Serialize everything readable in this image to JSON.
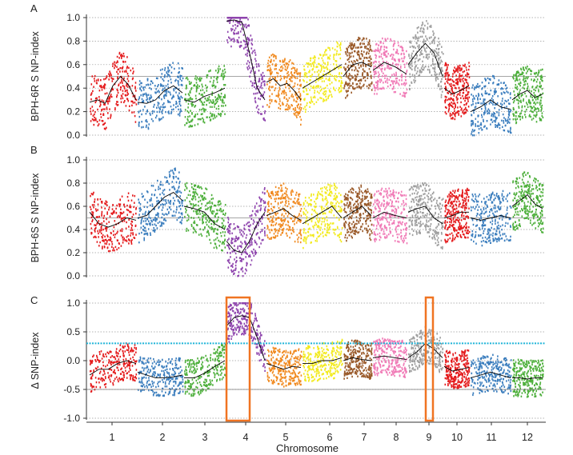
{
  "figure": {
    "xlabel": "Chromosome"
  },
  "colors": {
    "chr1": "#e41a1c",
    "chr2": "#3a7dbd",
    "chr3": "#4caf3a",
    "chr4": "#8e44ad",
    "chr5": "#f0891e",
    "chr6": "#f2ea1c",
    "chr7": "#9a5a2a",
    "chr8": "#f07ab6",
    "chr9": "#9e9e9e",
    "chr10": "#e41a1c",
    "chr11": "#3a7dbd",
    "chr12": "#4caf3a",
    "trend": "#000000",
    "threshold": "#1fb4d8",
    "highlight": "#f07422"
  },
  "chart_data": [
    {
      "id": "A",
      "panel_label": "A",
      "type": "scatter",
      "ylabel": "BPH-6R S NP-index",
      "xlabel": "",
      "ylim": [
        0.0,
        1.0
      ],
      "yticks": [
        "0.0",
        "0.2",
        "0.4",
        "0.6",
        "0.8",
        "1.0"
      ],
      "categories": [
        "1",
        "2",
        "3",
        "4",
        "5",
        "6",
        "7",
        "8",
        "9",
        "10",
        "11",
        "12"
      ],
      "series": [
        {
          "chromosome": "1",
          "mean_index": [
            0.28,
            0.3,
            0.27,
            0.42,
            0.5,
            0.43,
            0.3
          ]
        },
        {
          "chromosome": "2",
          "mean_index": [
            0.28,
            0.27,
            0.3,
            0.38,
            0.42,
            0.36
          ]
        },
        {
          "chromosome": "3",
          "mean_index": [
            0.3,
            0.28,
            0.33,
            0.36,
            0.4
          ]
        },
        {
          "chromosome": "4",
          "mean_index": [
            0.97,
            0.98,
            0.96,
            0.7,
            0.4,
            0.3
          ]
        },
        {
          "chromosome": "5",
          "mean_index": [
            0.45,
            0.48,
            0.42,
            0.44,
            0.38,
            0.3
          ]
        },
        {
          "chromosome": "6",
          "mean_index": [
            0.4,
            0.45,
            0.5,
            0.55,
            0.6
          ]
        },
        {
          "chromosome": "7",
          "mean_index": [
            0.5,
            0.6,
            0.62,
            0.58
          ]
        },
        {
          "chromosome": "8",
          "mean_index": [
            0.55,
            0.62,
            0.58,
            0.52
          ]
        },
        {
          "chromosome": "9",
          "mean_index": [
            0.6,
            0.7,
            0.78,
            0.7,
            0.5
          ]
        },
        {
          "chromosome": "10",
          "mean_index": [
            0.4,
            0.35,
            0.38,
            0.42
          ]
        },
        {
          "chromosome": "11",
          "mean_index": [
            0.2,
            0.24,
            0.3,
            0.24,
            0.22
          ]
        },
        {
          "chromosome": "12",
          "mean_index": [
            0.3,
            0.35,
            0.38,
            0.32,
            0.35
          ]
        }
      ],
      "reference_line": 0.5
    },
    {
      "id": "B",
      "panel_label": "B",
      "type": "scatter",
      "ylabel": "BPH-6S S NP-index",
      "xlabel": "",
      "ylim": [
        0.0,
        1.0
      ],
      "yticks": [
        "0.0",
        "0.2",
        "0.4",
        "0.6",
        "0.8",
        "1.0"
      ],
      "categories": [
        "1",
        "2",
        "3",
        "4",
        "5",
        "6",
        "7",
        "8",
        "9",
        "10",
        "11",
        "12"
      ],
      "series": [
        {
          "chromosome": "1",
          "mean_index": [
            0.55,
            0.45,
            0.42,
            0.45,
            0.5,
            0.48
          ]
        },
        {
          "chromosome": "2",
          "mean_index": [
            0.5,
            0.52,
            0.6,
            0.68,
            0.72,
            0.65
          ]
        },
        {
          "chromosome": "3",
          "mean_index": [
            0.6,
            0.58,
            0.55,
            0.45,
            0.4
          ]
        },
        {
          "chromosome": "4",
          "mean_index": [
            0.3,
            0.22,
            0.2,
            0.3,
            0.45,
            0.55
          ]
        },
        {
          "chromosome": "5",
          "mean_index": [
            0.52,
            0.55,
            0.58,
            0.52,
            0.48
          ]
        },
        {
          "chromosome": "6",
          "mean_index": [
            0.45,
            0.5,
            0.55,
            0.6,
            0.5
          ]
        },
        {
          "chromosome": "7",
          "mean_index": [
            0.5,
            0.55,
            0.6,
            0.52
          ]
        },
        {
          "chromosome": "8",
          "mean_index": [
            0.5,
            0.55,
            0.52,
            0.5
          ]
        },
        {
          "chromosome": "9",
          "mean_index": [
            0.55,
            0.58,
            0.6,
            0.5,
            0.45
          ]
        },
        {
          "chromosome": "10",
          "mean_index": [
            0.5,
            0.52,
            0.55,
            0.55
          ]
        },
        {
          "chromosome": "11",
          "mean_index": [
            0.5,
            0.48,
            0.5,
            0.52,
            0.5
          ]
        },
        {
          "chromosome": "12",
          "mean_index": [
            0.6,
            0.65,
            0.7,
            0.62,
            0.58
          ]
        }
      ],
      "reference_line": 0.5
    },
    {
      "id": "C",
      "panel_label": "C",
      "type": "scatter",
      "ylabel": "Δ SNP-index",
      "xlabel": "Chromosome",
      "ylim": [
        -1.0,
        1.0
      ],
      "yticks": [
        "-1.0",
        "-0.5",
        "0.0",
        "0.5",
        "1.0"
      ],
      "categories": [
        "1",
        "2",
        "3",
        "4",
        "5",
        "6",
        "7",
        "8",
        "9",
        "10",
        "11",
        "12"
      ],
      "series": [
        {
          "chromosome": "1",
          "mean_index": [
            -0.25,
            -0.15,
            -0.15,
            -0.05,
            0.0,
            -0.05
          ]
        },
        {
          "chromosome": "2",
          "mean_index": [
            -0.2,
            -0.25,
            -0.3,
            -0.3,
            -0.28,
            -0.25
          ]
        },
        {
          "chromosome": "3",
          "mean_index": [
            -0.3,
            -0.3,
            -0.22,
            -0.1,
            0.0
          ]
        },
        {
          "chromosome": "4",
          "mean_index": [
            0.6,
            0.75,
            0.78,
            0.75,
            0.4,
            0.0
          ]
        },
        {
          "chromosome": "5",
          "mean_index": [
            -0.05,
            -0.1,
            -0.15,
            -0.1,
            -0.12
          ]
        },
        {
          "chromosome": "6",
          "mean_index": [
            -0.05,
            -0.05,
            0.0,
            0.0,
            0.05
          ]
        },
        {
          "chromosome": "7",
          "mean_index": [
            0.0,
            0.05,
            0.02,
            0.0
          ]
        },
        {
          "chromosome": "8",
          "mean_index": [
            0.05,
            0.08,
            0.05,
            0.02
          ]
        },
        {
          "chromosome": "9",
          "mean_index": [
            0.05,
            0.15,
            0.3,
            0.2,
            0.05
          ]
        },
        {
          "chromosome": "10",
          "mean_index": [
            -0.1,
            -0.18,
            -0.15,
            -0.12
          ]
        },
        {
          "chromosome": "11",
          "mean_index": [
            -0.3,
            -0.25,
            -0.2,
            -0.25,
            -0.3
          ]
        },
        {
          "chromosome": "12",
          "mean_index": [
            -0.3,
            -0.3,
            -0.32,
            -0.3,
            -0.3
          ]
        }
      ],
      "threshold_lines": [
        0.3,
        -0.5
      ],
      "highlighted_chromosomes": [
        "4",
        "9"
      ]
    }
  ]
}
